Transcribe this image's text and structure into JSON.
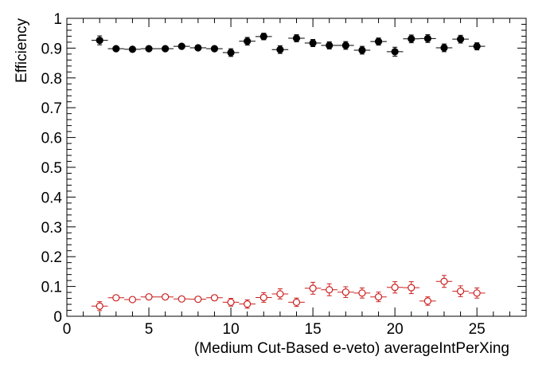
{
  "chart_data": {
    "type": "scatter",
    "title": "",
    "xlabel": "(Medium Cut-Based e-veto) averageIntPerXing",
    "ylabel": "Efficiency",
    "xlim": [
      0,
      28
    ],
    "ylim": [
      0,
      1
    ],
    "x_ticks": [
      0,
      5,
      10,
      15,
      20,
      25
    ],
    "y_ticks": [
      0,
      0.1,
      0.2,
      0.3,
      0.4,
      0.5,
      0.6,
      0.7,
      0.8,
      0.9,
      1
    ],
    "x_tick_labels": [
      "0",
      "5",
      "10",
      "15",
      "20",
      "25"
    ],
    "y_tick_labels": [
      "0",
      "0.1",
      "0.2",
      "0.3",
      "0.4",
      "0.5",
      "0.6",
      "0.7",
      "0.8",
      "0.9",
      "1"
    ],
    "grid": false,
    "x_error": 0.5,
    "series": [
      {
        "marker": "filled-circle",
        "color": "#000000",
        "x": [
          2,
          3,
          4,
          5,
          6,
          7,
          8,
          9,
          10,
          11,
          12,
          13,
          14,
          15,
          16,
          17,
          18,
          19,
          20,
          21,
          22,
          23,
          24,
          25
        ],
        "y": [
          0.926,
          0.898,
          0.896,
          0.898,
          0.898,
          0.906,
          0.901,
          0.898,
          0.885,
          0.923,
          0.939,
          0.895,
          0.933,
          0.917,
          0.909,
          0.909,
          0.893,
          0.922,
          0.888,
          0.931,
          0.932,
          0.901,
          0.93,
          0.906
        ],
        "yerr": [
          0.015,
          0.006,
          0.006,
          0.006,
          0.006,
          0.007,
          0.008,
          0.008,
          0.013,
          0.013,
          0.011,
          0.013,
          0.012,
          0.012,
          0.012,
          0.013,
          0.013,
          0.012,
          0.015,
          0.013,
          0.013,
          0.013,
          0.013,
          0.012
        ]
      },
      {
        "marker": "open-circle",
        "color": "#cc1f1f",
        "x": [
          2,
          3,
          4,
          5,
          6,
          7,
          8,
          9,
          10,
          11,
          12,
          13,
          14,
          15,
          16,
          17,
          18,
          19,
          20,
          21,
          22,
          23,
          24,
          25
        ],
        "y": [
          0.034,
          0.062,
          0.056,
          0.065,
          0.065,
          0.058,
          0.057,
          0.062,
          0.047,
          0.041,
          0.063,
          0.075,
          0.047,
          0.094,
          0.089,
          0.081,
          0.078,
          0.065,
          0.097,
          0.096,
          0.051,
          0.117,
          0.084,
          0.078
        ],
        "yerr": [
          0.015,
          0.006,
          0.006,
          0.006,
          0.006,
          0.007,
          0.008,
          0.009,
          0.013,
          0.014,
          0.016,
          0.017,
          0.014,
          0.02,
          0.02,
          0.018,
          0.017,
          0.016,
          0.019,
          0.02,
          0.014,
          0.02,
          0.018,
          0.017
        ]
      }
    ]
  }
}
